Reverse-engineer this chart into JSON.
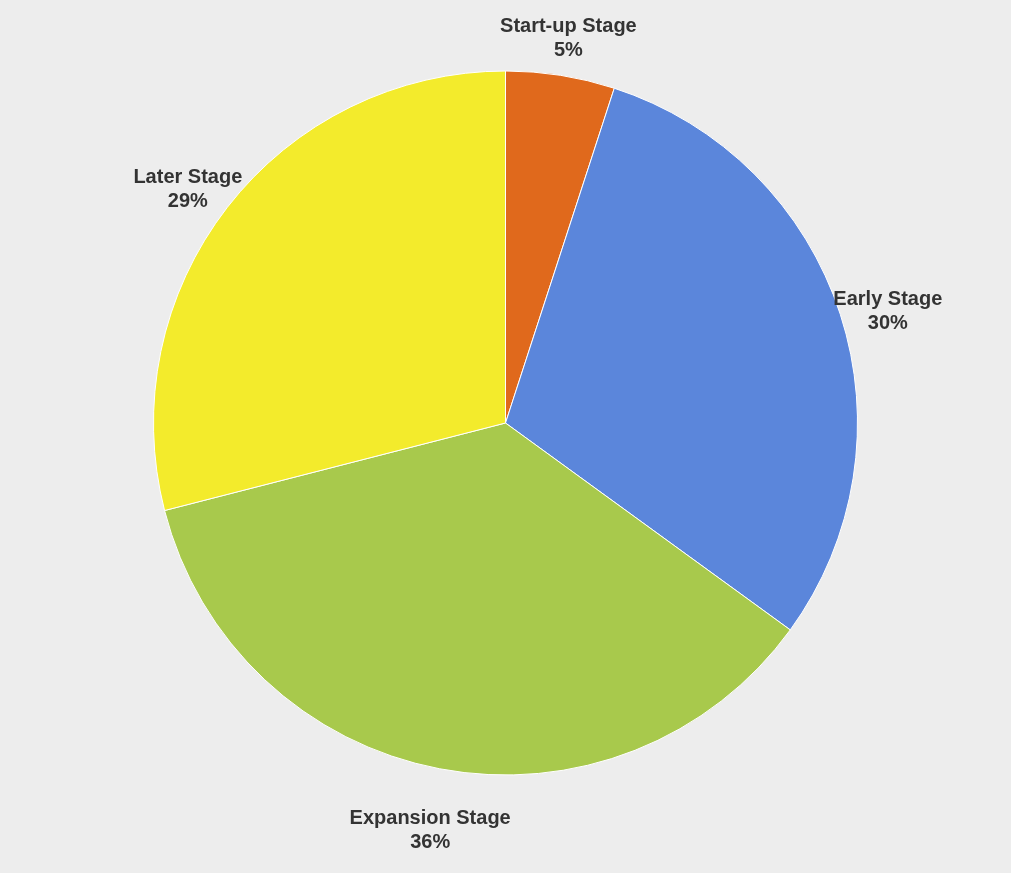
{
  "chart_data": {
    "type": "pie",
    "categories": [
      "Start-up Stage",
      "Early Stage",
      "Expansion Stage",
      "Later Stage"
    ],
    "values": [
      5,
      30,
      36,
      29
    ],
    "value_labels": [
      "5%",
      "30%",
      "36%",
      "29%"
    ],
    "colors": [
      "#e0691c",
      "#5b86db",
      "#a8c94c",
      "#f3eb2c"
    ]
  }
}
